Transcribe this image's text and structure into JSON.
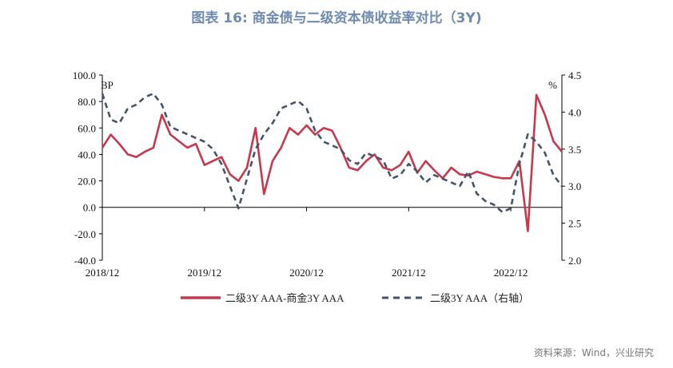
{
  "title": "图表 16: 商金债与二级资本债收益率对比（3Y)",
  "source": "资料来源：Wind，兴业研究",
  "chart_data": {
    "type": "line",
    "left_axis": {
      "unit": "BP",
      "min": -40,
      "max": 100,
      "ticks": [
        "100.0",
        "80.0",
        "60.0",
        "40.0",
        "20.0",
        "0.0",
        "-20.0",
        "-40.0"
      ]
    },
    "right_axis": {
      "unit": "%",
      "min": 2.0,
      "max": 4.5,
      "ticks": [
        "4.5",
        "4.0",
        "3.5",
        "3.0",
        "2.5",
        "2.0"
      ]
    },
    "x_ticks": [
      "2018/12",
      "2019/12",
      "2020/12",
      "2021/12",
      "2022/12"
    ],
    "x_range": [
      "2018-12",
      "2023-06"
    ],
    "legend_position": "bottom",
    "series": [
      {
        "name": "二级3Y AAA-商金3Y AAA",
        "axis": "left",
        "color": "#c8384c",
        "style": "solid",
        "x": [
          "2018-12",
          "2019-01",
          "2019-02",
          "2019-03",
          "2019-04",
          "2019-05",
          "2019-06",
          "2019-07",
          "2019-08",
          "2019-09",
          "2019-10",
          "2019-11",
          "2019-12",
          "2020-01",
          "2020-02",
          "2020-03",
          "2020-04",
          "2020-05",
          "2020-06",
          "2020-07",
          "2020-08",
          "2020-09",
          "2020-10",
          "2020-11",
          "2020-12",
          "2021-01",
          "2021-02",
          "2021-03",
          "2021-04",
          "2021-05",
          "2021-06",
          "2021-07",
          "2021-08",
          "2021-09",
          "2021-10",
          "2021-11",
          "2021-12",
          "2022-01",
          "2022-02",
          "2022-03",
          "2022-04",
          "2022-05",
          "2022-06",
          "2022-07",
          "2022-08",
          "2022-09",
          "2022-10",
          "2022-11",
          "2022-12",
          "2023-01",
          "2023-02",
          "2023-03",
          "2023-04",
          "2023-05",
          "2023-06"
        ],
        "values": [
          45,
          55,
          48,
          40,
          38,
          42,
          45,
          70,
          55,
          50,
          45,
          48,
          32,
          35,
          38,
          25,
          20,
          30,
          60,
          10,
          35,
          45,
          60,
          55,
          62,
          55,
          60,
          58,
          45,
          30,
          28,
          35,
          40,
          30,
          28,
          32,
          42,
          26,
          35,
          28,
          22,
          30,
          25,
          24,
          27,
          25,
          23,
          22,
          22,
          35,
          -18,
          85,
          70,
          50,
          42
        ]
      },
      {
        "name": "二级3Y AAA（右轴）",
        "axis": "right",
        "color": "#44546a",
        "style": "dashed",
        "x": [
          "2018-12",
          "2019-01",
          "2019-02",
          "2019-03",
          "2019-04",
          "2019-05",
          "2019-06",
          "2019-07",
          "2019-08",
          "2019-09",
          "2019-10",
          "2019-11",
          "2019-12",
          "2020-01",
          "2020-02",
          "2020-03",
          "2020-04",
          "2020-05",
          "2020-06",
          "2020-07",
          "2020-08",
          "2020-09",
          "2020-10",
          "2020-11",
          "2020-12",
          "2021-01",
          "2021-02",
          "2021-03",
          "2021-04",
          "2021-05",
          "2021-06",
          "2021-07",
          "2021-08",
          "2021-09",
          "2021-10",
          "2021-11",
          "2021-12",
          "2022-01",
          "2022-02",
          "2022-03",
          "2022-04",
          "2022-05",
          "2022-06",
          "2022-07",
          "2022-08",
          "2022-09",
          "2022-10",
          "2022-11",
          "2022-12",
          "2023-01",
          "2023-02",
          "2023-03",
          "2023-04",
          "2023-05",
          "2023-06"
        ],
        "values": [
          4.25,
          3.9,
          3.85,
          4.05,
          4.1,
          4.2,
          4.25,
          4.1,
          3.8,
          3.75,
          3.7,
          3.65,
          3.6,
          3.5,
          3.3,
          3.0,
          2.7,
          3.1,
          3.5,
          3.7,
          3.85,
          4.05,
          4.1,
          4.15,
          4.05,
          3.75,
          3.6,
          3.55,
          3.5,
          3.35,
          3.3,
          3.45,
          3.4,
          3.35,
          3.1,
          3.15,
          3.3,
          3.2,
          3.05,
          3.15,
          3.1,
          3.05,
          3.0,
          3.2,
          2.9,
          2.8,
          2.75,
          2.65,
          2.7,
          3.3,
          3.7,
          3.6,
          3.45,
          3.15,
          3.0
        ]
      }
    ]
  }
}
